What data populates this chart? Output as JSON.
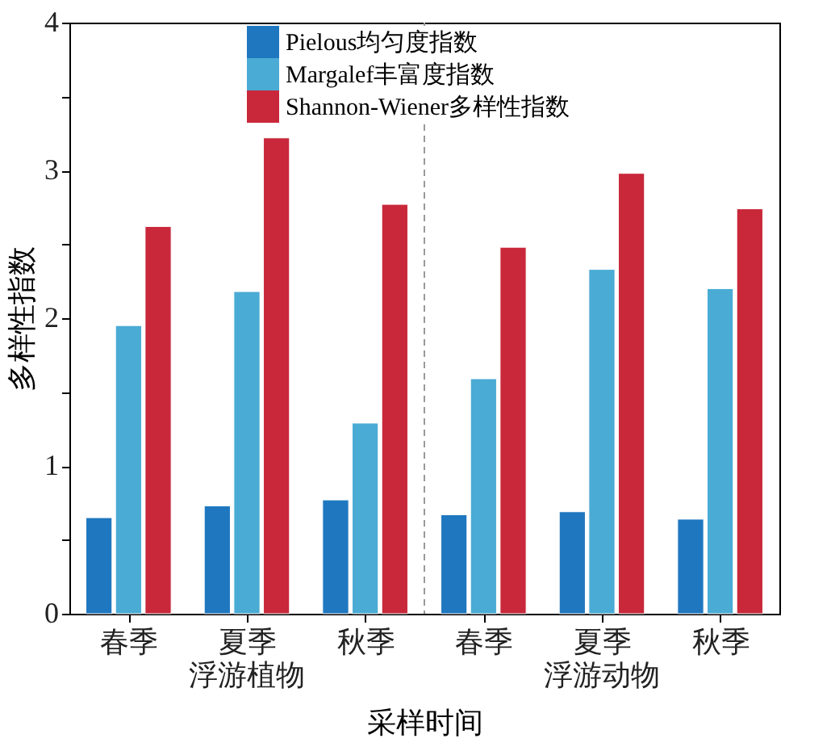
{
  "chart_data": {
    "type": "bar",
    "xlabel": "采样时间",
    "ylabel": "多样性指数",
    "categories": [
      "春季",
      "夏季",
      "秋季",
      "春季",
      "夏季",
      "秋季"
    ],
    "series": [
      {
        "name": "Pielous均匀度指数",
        "color": "#1f77bf",
        "values": [
          0.65,
          0.73,
          0.77,
          0.67,
          0.69,
          0.64
        ]
      },
      {
        "name": "Margalef丰富度指数",
        "color": "#4aabd5",
        "values": [
          1.95,
          2.18,
          1.29,
          1.59,
          2.33,
          2.2
        ]
      },
      {
        "name": "Shannon-Wiener多样性指数",
        "color": "#c8283a",
        "values": [
          2.62,
          3.22,
          2.77,
          2.48,
          2.98,
          2.74
        ]
      }
    ],
    "ylim": [
      0,
      4
    ],
    "yticks": [
      0,
      {
        "value": 0.5,
        "label": null
      },
      1,
      {
        "value": 1.5,
        "label": null
      },
      2,
      {
        "value": 2.5,
        "label": null
      },
      3,
      {
        "value": 3.5,
        "label": null
      },
      4
    ],
    "annotations": [
      "浮游植物",
      "浮游动物"
    ],
    "grid": false,
    "legend": "top"
  }
}
